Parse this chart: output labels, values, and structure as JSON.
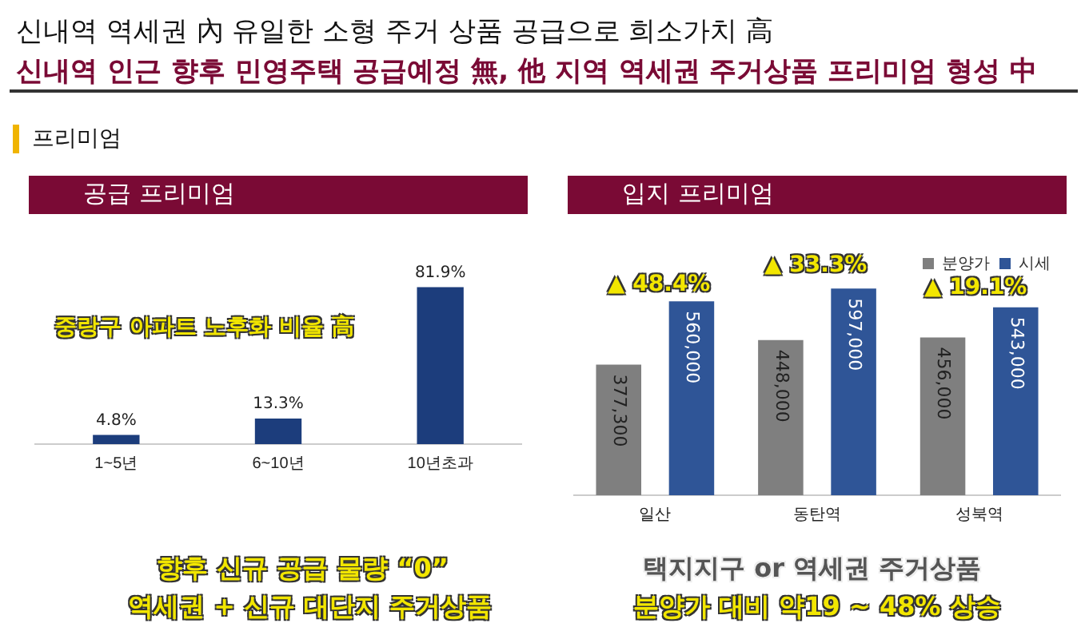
{
  "chart_data": [
    {
      "type": "bar",
      "title": "공급 프리미엄",
      "categories": [
        "1~5년",
        "6~10년",
        "10년초과"
      ],
      "values": [
        4.8,
        13.3,
        81.9
      ],
      "color": "#1c3d7c",
      "value_labels": [
        "4.8%",
        "13.3%",
        "81.9%"
      ],
      "tick_labels": "x",
      "grid": false,
      "legend": false,
      "annotations": [
        "신내역 역세권 內 유일한 소형 주거 상품 공급으로 희소가치 高",
        "신내역 인근 향후 민영주택 공급예정 無, 他 지역 역세권 주거상품 프리미엄 형성 中",
        "프리미엄",
        "중랑구 아파트 노후화 비율 高",
        "향후 신규 공급 물량 “0”",
        "역세권 + 신규 대단지 주거상품"
      ]
    },
    {
      "type": "bar",
      "title": "입지 프리미엄",
      "categories": [
        "일산",
        "동탄역",
        "성북역"
      ],
      "tick_labels": "x",
      "grid": false,
      "legend": "top right",
      "series": [
        {
          "name": "분양가",
          "color": "#7f7f7f",
          "values": [
            377300,
            448000,
            456000
          ],
          "value_labels": [
            "377,300",
            "448,000",
            "456,000"
          ]
        },
        {
          "name": "시세",
          "color": "#2f5597",
          "values": [
            560000,
            597000,
            543000
          ],
          "value_labels": [
            "560,000",
            "597,000",
            "543,000"
          ]
        }
      ],
      "annotations": [
        "▲ 48.4%",
        "▲ 33.3%",
        "▲ 19.1%",
        "택지지구 or 역세권 주거상품",
        "분양가 대비 약19 ~ 48% 상승"
      ]
    }
  ]
}
